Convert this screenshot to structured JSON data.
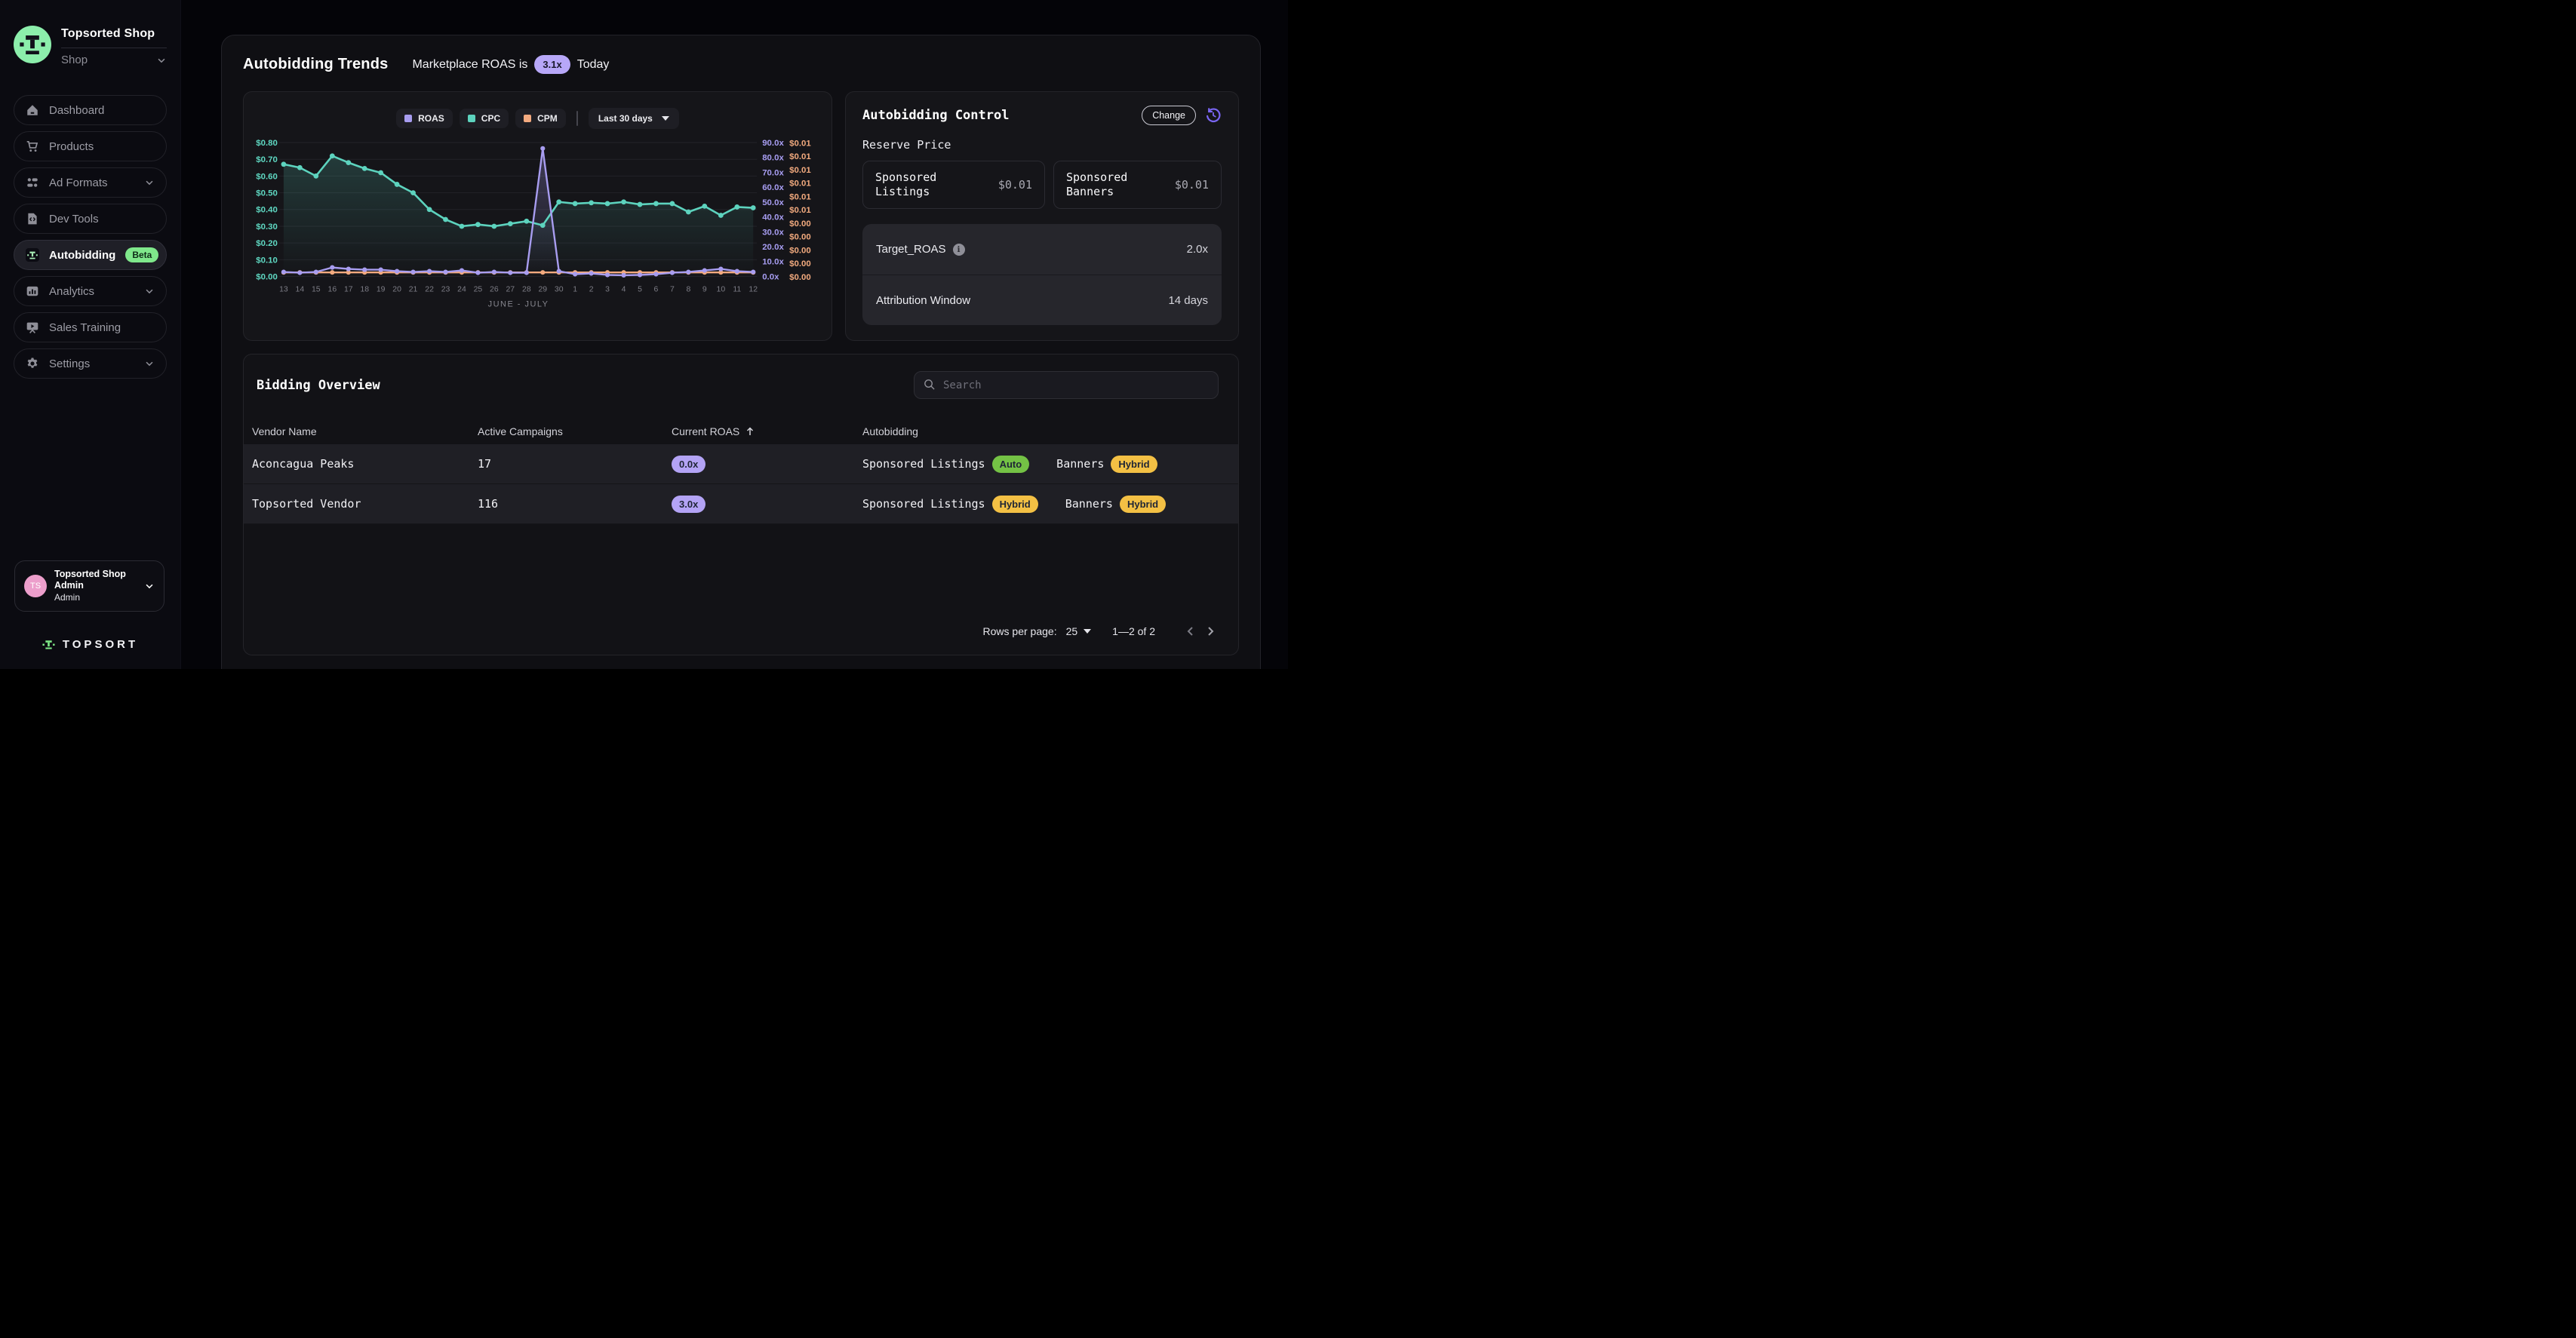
{
  "colors": {
    "accent_purple": "#a79df1",
    "accent_teal": "#5fd8c2",
    "accent_orange": "#f2aa7e",
    "badge_auto_green": "#74c245",
    "badge_hybrid_yellow": "#f3c044",
    "badge_roas_purple": "#b3a3f5",
    "beta_green": "#7fe88b",
    "logo_green": "#8ceeab",
    "avatar_pink": "#ec9ecb"
  },
  "sidebar": {
    "workspace": {
      "name": "Topsorted Shop",
      "scope": "Shop"
    },
    "nav": [
      {
        "label": "Dashboard",
        "icon": "home-icon",
        "chevron": false,
        "active": false,
        "badge": null
      },
      {
        "label": "Products",
        "icon": "cart-icon",
        "chevron": false,
        "active": false,
        "badge": null
      },
      {
        "label": "Ad Formats",
        "icon": "users-icon",
        "chevron": true,
        "active": false,
        "badge": null
      },
      {
        "label": "Dev Tools",
        "icon": "code-file-icon",
        "chevron": false,
        "active": false,
        "badge": null
      },
      {
        "label": "Autobidding",
        "icon": "topsort-glyph-icon",
        "chevron": false,
        "active": true,
        "badge": "Beta"
      },
      {
        "label": "Analytics",
        "icon": "analytics-icon",
        "chevron": true,
        "active": false,
        "badge": null
      },
      {
        "label": "Sales Training",
        "icon": "presentation-icon",
        "chevron": false,
        "active": false,
        "badge": null
      },
      {
        "label": "Settings",
        "icon": "gear-icon",
        "chevron": true,
        "active": false,
        "badge": null
      }
    ],
    "user": {
      "initials": "TS",
      "name": "Topsorted Shop Admin",
      "role": "Admin"
    },
    "brand": "TOPSORT"
  },
  "header": {
    "title": "Autobidding Trends",
    "roas_text_before": "Marketplace ROAS is",
    "roas_value": "3.1x",
    "roas_text_after": "Today"
  },
  "trends": {
    "legend": [
      {
        "name": "ROAS",
        "color": "#a89df0"
      },
      {
        "name": "CPC",
        "color": "#5dd3be"
      },
      {
        "name": "CPM",
        "color": "#f3aa7f"
      }
    ],
    "range_selector": "Last 30 days",
    "left_axis_labels": [
      "$0.80",
      "$0.70",
      "$0.60",
      "$0.50",
      "$0.40",
      "$0.30",
      "$0.20",
      "$0.10",
      "$0.00"
    ],
    "right_axis_roas_labels": [
      "90.0x",
      "80.0x",
      "70.0x",
      "60.0x",
      "50.0x",
      "40.0x",
      "30.0x",
      "20.0x",
      "10.0x",
      "0.0x"
    ],
    "right_axis_cpm_labels": [
      "$0.01",
      "$0.01",
      "$0.01",
      "$0.01",
      "$0.01",
      "$0.01",
      "$0.00",
      "$0.00",
      "$0.00",
      "$0.00",
      "$0.00"
    ],
    "chart_data": {
      "type": "line",
      "x": [
        "13",
        "14",
        "15",
        "16",
        "17",
        "18",
        "19",
        "20",
        "21",
        "22",
        "23",
        "24",
        "25",
        "26",
        "27",
        "28",
        "29",
        "30",
        "1",
        "2",
        "3",
        "4",
        "5",
        "6",
        "7",
        "8",
        "9",
        "10",
        "11",
        "12"
      ],
      "xlabel": "JUNE - JULY",
      "grid": true,
      "legend_position": "top",
      "left_axis": {
        "min": 0,
        "max": 0.8,
        "format": "usd",
        "series": "CPC"
      },
      "right_axis_roas": {
        "min": 0,
        "max": 90,
        "format": "x",
        "series": "ROAS"
      },
      "right_axis_cpm": {
        "min": 0,
        "max": 0.01,
        "format": "usd",
        "series": "CPM"
      },
      "series": [
        {
          "name": "ROAS",
          "color": "#a89df0",
          "axis": "right_roas",
          "values": [
            3,
            2.5,
            3,
            6,
            5,
            4.5,
            4.5,
            3.5,
            3,
            3.5,
            3,
            4,
            2.5,
            3,
            2.5,
            2.5,
            86,
            3.5,
            1.5,
            2,
            1,
            0.8,
            1,
            1.5,
            2.5,
            3,
            4,
            5,
            3.5,
            3
          ]
        },
        {
          "name": "CPC",
          "color": "#5dd3be",
          "axis": "left_usd",
          "values": [
            0.67,
            0.65,
            0.6,
            0.72,
            0.68,
            0.645,
            0.62,
            0.55,
            0.5,
            0.4,
            0.34,
            0.3,
            0.31,
            0.3,
            0.315,
            0.33,
            0.305,
            0.445,
            0.435,
            0.44,
            0.435,
            0.445,
            0.43,
            0.435,
            0.435,
            0.385,
            0.42,
            0.365,
            0.415,
            0.41
          ]
        },
        {
          "name": "CPM",
          "color": "#f3aa7f",
          "axis": "right_usd",
          "values": [
            0.0003,
            0.0003,
            0.0003,
            0.0003,
            0.0003,
            0.0003,
            0.0003,
            0.0003,
            0.0003,
            0.0003,
            0.0003,
            0.0003,
            0.0003,
            0.0003,
            0.0003,
            0.0003,
            0.0003,
            0.0003,
            0.0003,
            0.0003,
            0.0003,
            0.0003,
            0.0003,
            0.0003,
            0.0003,
            0.0003,
            0.0003,
            0.0003,
            0.0003,
            0.0003
          ]
        }
      ]
    }
  },
  "control": {
    "title": "Autobidding Control",
    "change_button": "Change",
    "section_title": "Reserve Price",
    "reserve_prices": [
      {
        "label": "Sponsored Listings",
        "value": "$0.01"
      },
      {
        "label": "Sponsored Banners",
        "value": "$0.01"
      }
    ],
    "settings": [
      {
        "label": "Target_ROAS",
        "info": true,
        "value": "2.0x"
      },
      {
        "label": "Attribution Window",
        "info": false,
        "value": "14 days"
      }
    ]
  },
  "bidding": {
    "title": "Bidding Overview",
    "search_placeholder": "Search",
    "columns": [
      "Vendor Name",
      "Active Campaigns",
      "Current ROAS",
      "Autobidding"
    ],
    "sorted_column": "Current ROAS",
    "rows": [
      {
        "vendor": "Aconcagua Peaks",
        "campaigns": "17",
        "roas": "0.0x",
        "listings_label": "Sponsored Listings",
        "listings_mode": "Auto",
        "banners_label": "Banners",
        "banners_mode": "Hybrid"
      },
      {
        "vendor": "Topsorted Vendor",
        "campaigns": "116",
        "roas": "3.0x",
        "listings_label": "Sponsored Listings",
        "listings_mode": "Hybrid",
        "banners_label": "Banners",
        "banners_mode": "Hybrid"
      }
    ],
    "pagination": {
      "rows_per_page_label": "Rows per page:",
      "rows_per_page": "25",
      "range": "1—2 of 2"
    }
  }
}
